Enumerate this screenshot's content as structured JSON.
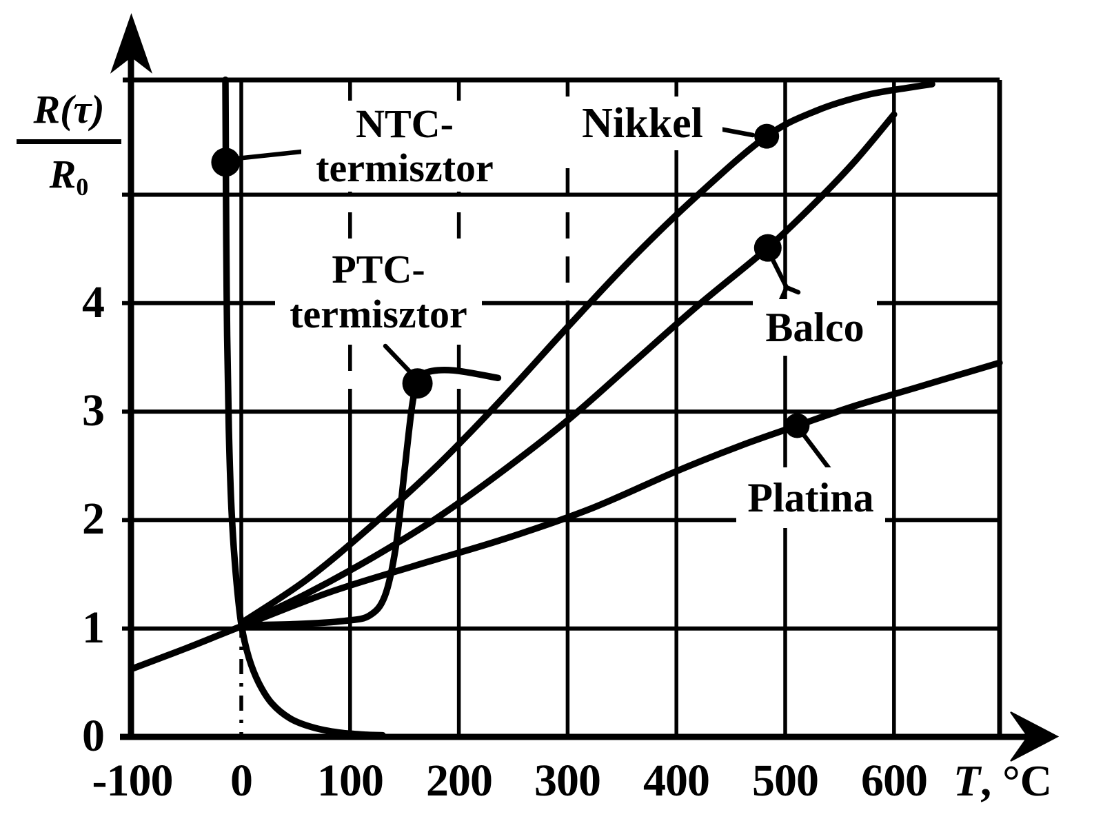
{
  "figure": {
    "background": "#ffffff",
    "ink_color": "#000000",
    "y_axis": {
      "numerator": "R(τ)",
      "denominator_base": "R",
      "denominator_sub": "0"
    },
    "x_axis": {
      "variable": "T",
      "unit": ", °C"
    },
    "x_tick_labels": [
      "-100",
      "0",
      "100",
      "200",
      "300",
      "400",
      "500",
      "600"
    ],
    "y_tick_labels": [
      "0",
      "1",
      "2",
      "3",
      "4"
    ]
  },
  "labels": {
    "ntc_line1": "NTC-",
    "ntc_line2": "termisztor",
    "ptc_line1": "PTC-",
    "ptc_line2": "termisztor",
    "nikkel": "Nikkel",
    "balco": "Balco",
    "platina": "Platina"
  },
  "chart_data": {
    "type": "line",
    "title": "",
    "xlabel": "T, °C",
    "ylabel": "R(τ)/R₀",
    "xlim": [
      -100,
      700
    ],
    "ylim": [
      0,
      6.06
    ],
    "grid": true,
    "legend_position": "inline-annotations",
    "x_ticks": [
      -100,
      0,
      100,
      200,
      300,
      400,
      500,
      600
    ],
    "y_ticks": [
      0,
      1,
      2,
      3,
      4
    ],
    "x_grid": [
      0,
      100,
      200,
      300,
      400,
      500,
      600
    ],
    "y_grid": [
      1,
      2,
      3,
      4,
      5
    ],
    "series": [
      {
        "id": "ntc",
        "name": "NTC-termisztor",
        "marker": [
          -14.3,
          5.3
        ],
        "points": [
          [
            -14.6,
            6.06
          ],
          [
            -14.2,
            5.3
          ],
          [
            -13.8,
            4.6
          ],
          [
            -13,
            3.7
          ],
          [
            -11.5,
            2.85
          ],
          [
            -9,
            2.1
          ],
          [
            -5,
            1.5
          ],
          [
            0,
            1.04
          ],
          [
            7,
            0.73
          ],
          [
            16,
            0.5
          ],
          [
            28,
            0.31
          ],
          [
            45,
            0.17
          ],
          [
            65,
            0.09
          ],
          [
            90,
            0.04
          ],
          [
            115,
            0.02
          ],
          [
            130,
            0.015
          ]
        ]
      },
      {
        "id": "ptc",
        "name": "PTC-termisztor",
        "marker": [
          162,
          3.26
        ],
        "points": [
          [
            2,
            1.03
          ],
          [
            50,
            1.04
          ],
          [
            95,
            1.07
          ],
          [
            118,
            1.12
          ],
          [
            132,
            1.3
          ],
          [
            142,
            1.75
          ],
          [
            150,
            2.45
          ],
          [
            157,
            3.05
          ],
          [
            162,
            3.26
          ],
          [
            170,
            3.36
          ],
          [
            195,
            3.38
          ],
          [
            236,
            3.31
          ]
        ]
      },
      {
        "id": "nikkel",
        "name": "Nikkel",
        "marker": [
          483,
          5.54
        ],
        "points": [
          [
            0,
            1.05
          ],
          [
            60,
            1.45
          ],
          [
            120,
            1.95
          ],
          [
            180,
            2.5
          ],
          [
            240,
            3.12
          ],
          [
            300,
            3.78
          ],
          [
            360,
            4.42
          ],
          [
            420,
            5.0
          ],
          [
            483,
            5.54
          ],
          [
            530,
            5.78
          ],
          [
            575,
            5.92
          ],
          [
            615,
            5.99
          ],
          [
            635,
            6.02
          ]
        ]
      },
      {
        "id": "balco",
        "name": "Balco",
        "marker": [
          484,
          4.51
        ],
        "points": [
          [
            0,
            1.03
          ],
          [
            60,
            1.32
          ],
          [
            120,
            1.65
          ],
          [
            180,
            2.02
          ],
          [
            240,
            2.45
          ],
          [
            300,
            2.92
          ],
          [
            360,
            3.45
          ],
          [
            420,
            3.98
          ],
          [
            484,
            4.51
          ],
          [
            530,
            4.95
          ],
          [
            565,
            5.32
          ],
          [
            600,
            5.74
          ]
        ]
      },
      {
        "id": "platina",
        "name": "Platina",
        "marker": [
          511,
          2.87
        ],
        "points": [
          [
            -100,
            0.63
          ],
          [
            -50,
            0.82
          ],
          [
            0,
            1.02
          ],
          [
            80,
            1.33
          ],
          [
            160,
            1.58
          ],
          [
            240,
            1.82
          ],
          [
            320,
            2.1
          ],
          [
            400,
            2.45
          ],
          [
            460,
            2.69
          ],
          [
            511,
            2.87
          ],
          [
            560,
            3.04
          ],
          [
            620,
            3.22
          ],
          [
            697,
            3.45
          ]
        ]
      }
    ]
  }
}
